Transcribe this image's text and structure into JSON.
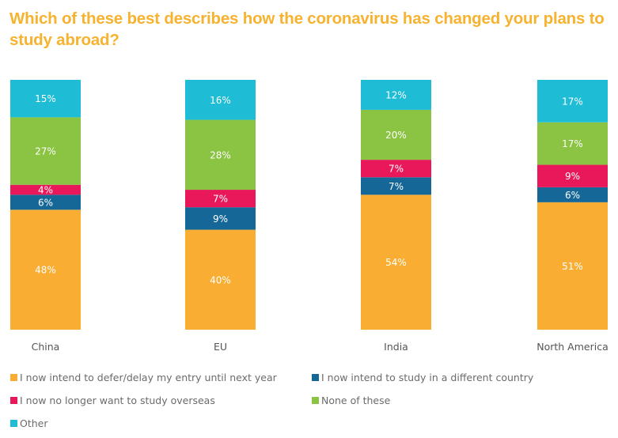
{
  "chart_data": {
    "type": "bar",
    "stacked": true,
    "title": "Which of these best describes how the coronavirus has changed your plans to study abroad?",
    "xlabel": "",
    "ylabel": "",
    "ylim": [
      0,
      100
    ],
    "grid": false,
    "legend_position": "bottom",
    "categories": [
      "China",
      "EU",
      "India",
      "North America"
    ],
    "series": [
      {
        "name": "I now intend to defer/delay my entry until next year",
        "color": "#f9ae33",
        "values": [
          48,
          40,
          54,
          51
        ]
      },
      {
        "name": "I now intend to study in a different country",
        "color": "#156797",
        "values": [
          6,
          9,
          7,
          6
        ]
      },
      {
        "name": "I now no longer want to study overseas",
        "color": "#e8185b",
        "values": [
          4,
          7,
          7,
          9
        ]
      },
      {
        "name": "None of these",
        "color": "#8bc342",
        "values": [
          27,
          28,
          20,
          17
        ]
      },
      {
        "name": "Other",
        "color": "#1fbcd6",
        "values": [
          15,
          16,
          12,
          17
        ]
      }
    ],
    "value_suffix": "%"
  }
}
